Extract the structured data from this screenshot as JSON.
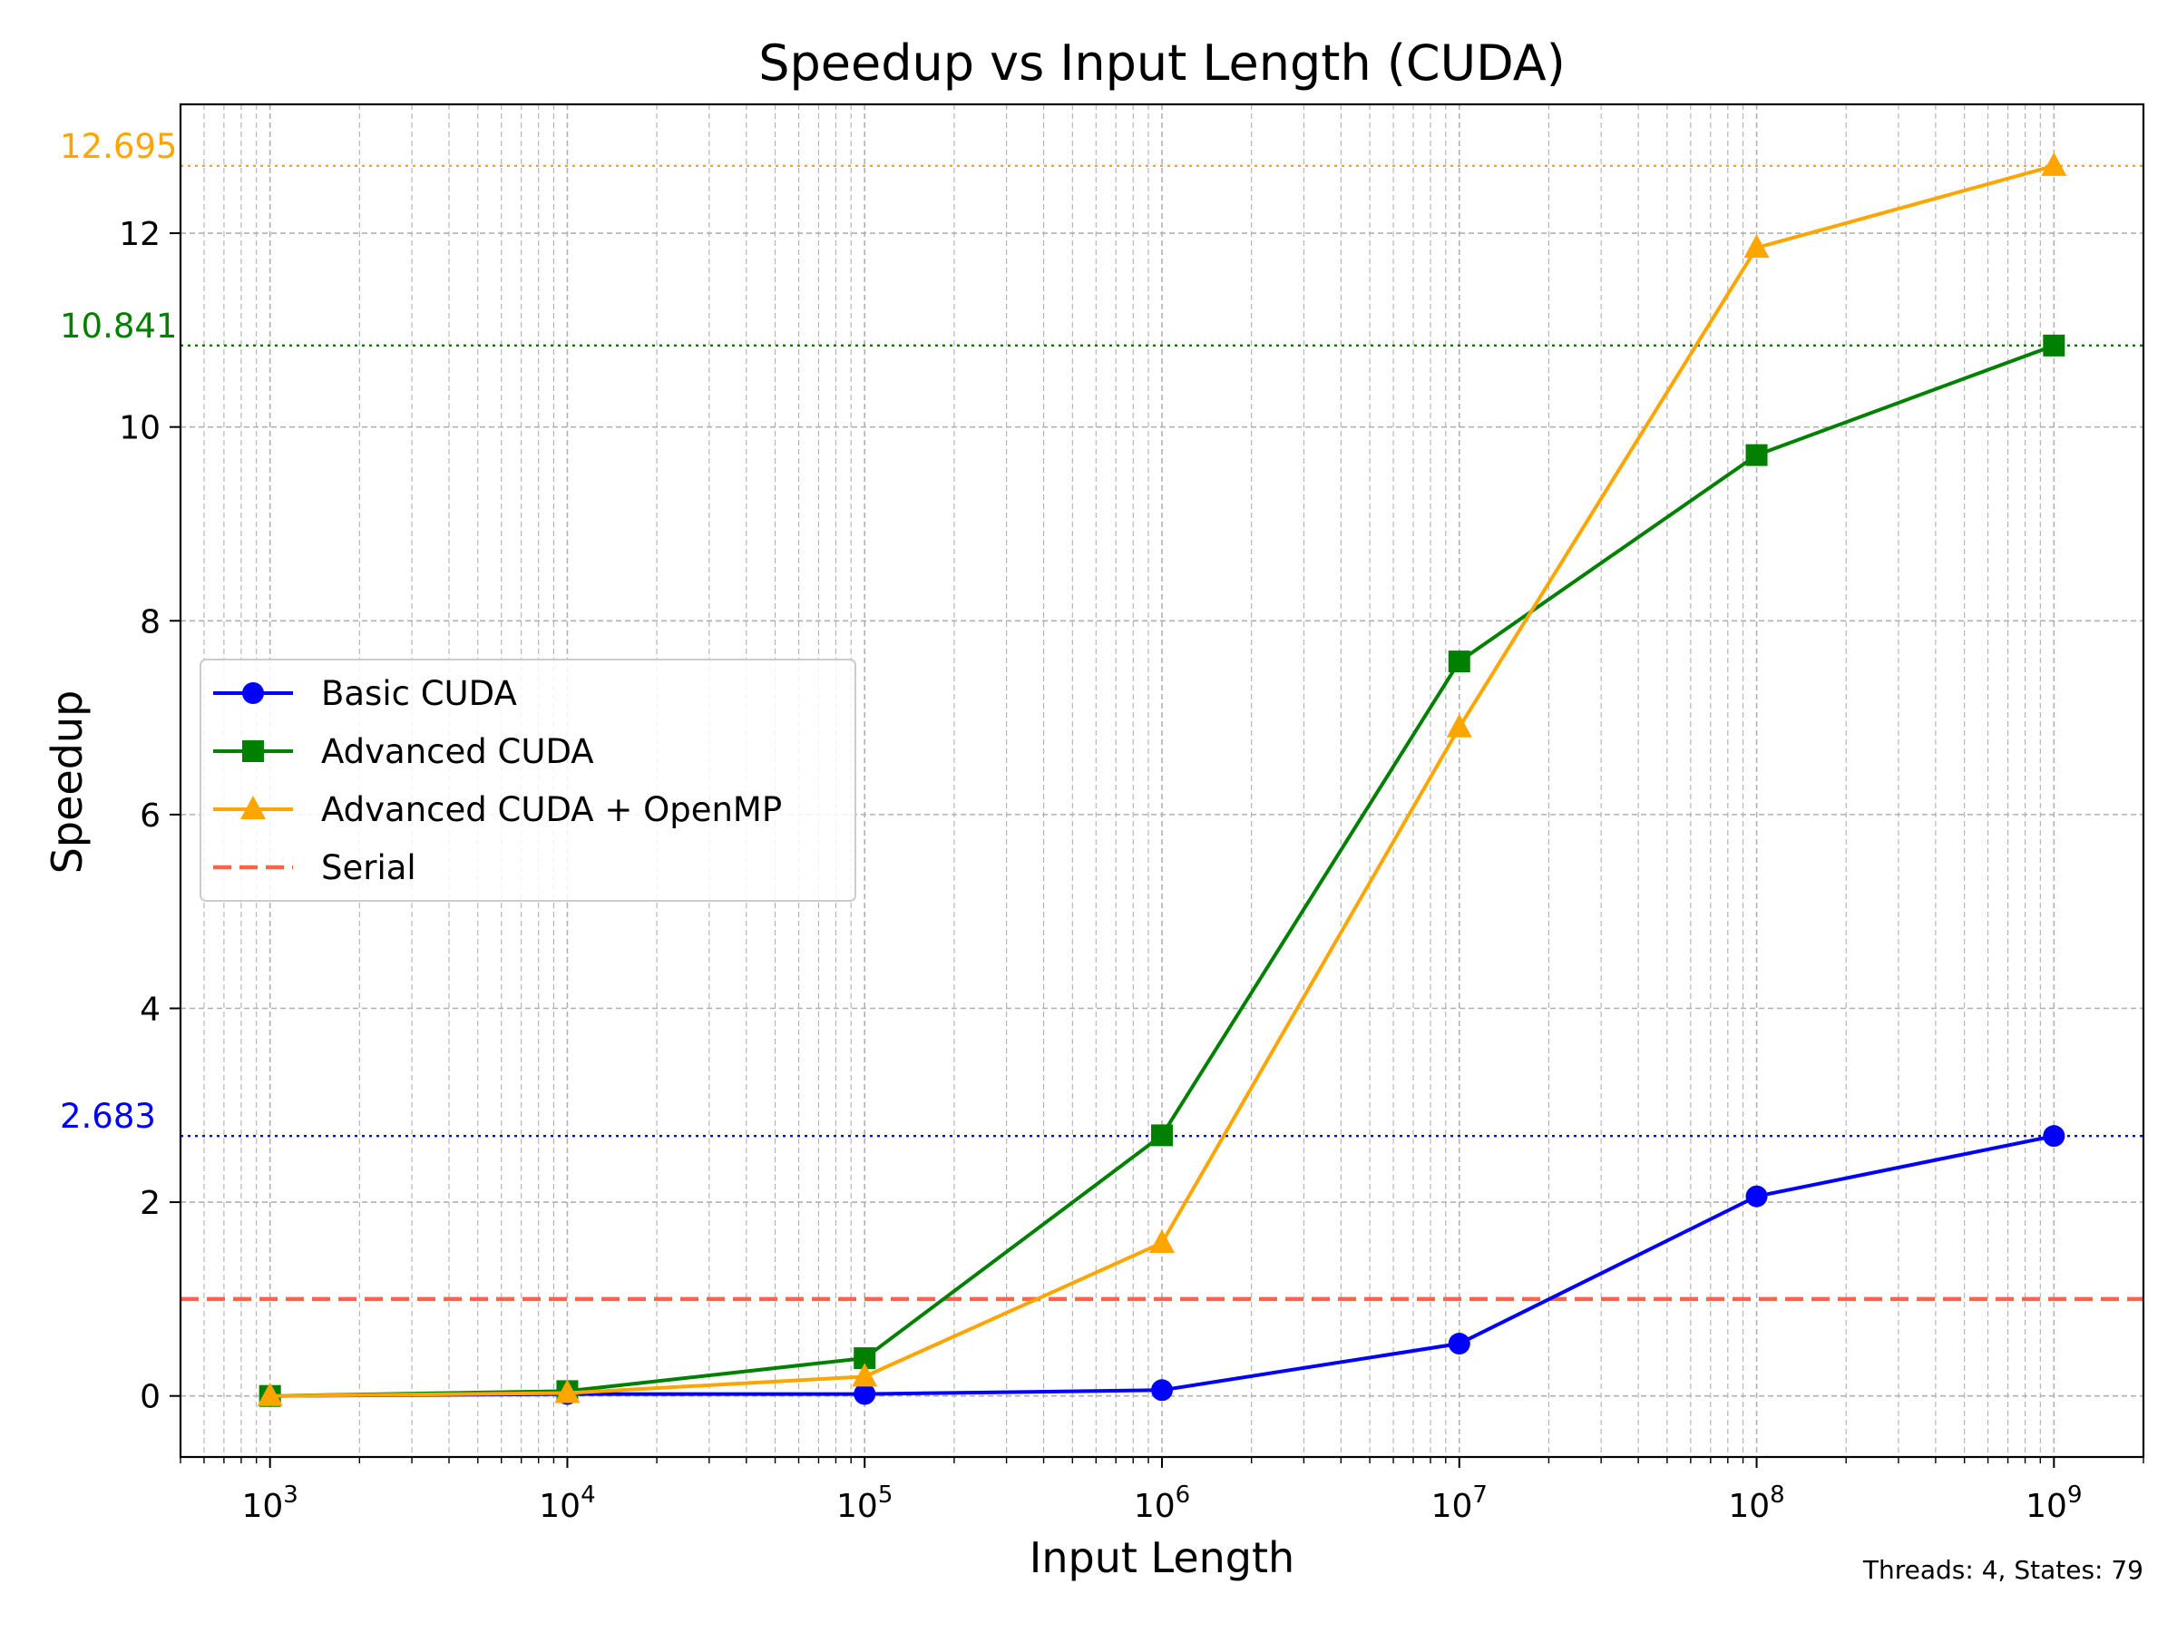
{
  "chart_data": {
    "type": "line",
    "title": "Speedup vs Input Length (CUDA)",
    "xlabel": "Input Length",
    "ylabel": "Speedup",
    "xscale": "log",
    "x": [
      1000,
      10000,
      100000,
      1000000,
      10000000,
      100000000,
      1000000000
    ],
    "xtick_labels": [
      {
        "base": "10",
        "exp": "3"
      },
      {
        "base": "10",
        "exp": "4"
      },
      {
        "base": "10",
        "exp": "5"
      },
      {
        "base": "10",
        "exp": "6"
      },
      {
        "base": "10",
        "exp": "7"
      },
      {
        "base": "10",
        "exp": "8"
      },
      {
        "base": "10",
        "exp": "9"
      }
    ],
    "xlim": [
      500,
      2000000000
    ],
    "ylim": [
      -0.63,
      13.33
    ],
    "yticks": [
      0,
      2,
      4,
      6,
      8,
      10,
      12
    ],
    "grid": true,
    "legend_position": "center-left",
    "series": [
      {
        "name": "Basic CUDA",
        "color": "#0000ff",
        "marker": "circle",
        "values": [
          0.0,
          0.02,
          0.02,
          0.06,
          0.54,
          2.06,
          2.683
        ]
      },
      {
        "name": "Advanced CUDA",
        "color": "#008000",
        "marker": "square",
        "values": [
          0.0,
          0.05,
          0.39,
          2.69,
          7.58,
          9.71,
          10.841
        ]
      },
      {
        "name": "Advanced CUDA + OpenMP",
        "color": "#ffa500",
        "marker": "triangle",
        "values": [
          0.0,
          0.03,
          0.2,
          1.58,
          6.9,
          11.85,
          12.695
        ]
      },
      {
        "name": "Serial",
        "color": "#ff6347",
        "style": "dashed",
        "constant": 1.0
      }
    ],
    "reference_lines": [
      {
        "value": 12.695,
        "label": "12.695",
        "color": "#ffa500"
      },
      {
        "value": 10.841,
        "label": "10.841",
        "color": "#008000"
      },
      {
        "value": 2.683,
        "label": "2.683",
        "color": "#0000ff"
      }
    ],
    "annotation": "Threads: 4, States: 79"
  }
}
